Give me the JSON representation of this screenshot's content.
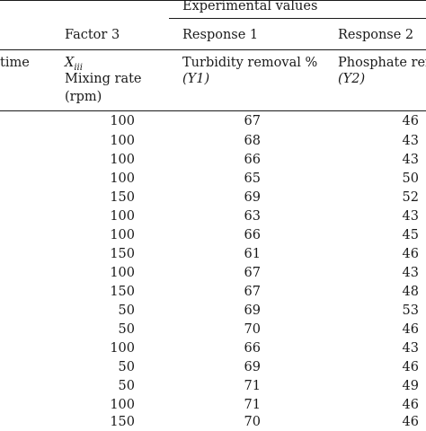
{
  "header": {
    "group_label": "Experimental values",
    "col0_fragment": "time",
    "factor3": {
      "label": "Factor 3",
      "symbol": "X",
      "symbol_sub": "iii",
      "name_line1": "Mixing rate",
      "name_line2": "(rpm)"
    },
    "response1": {
      "label": "Response 1",
      "name": "Turbidity removal %",
      "symbol": "(Y1)"
    },
    "response2": {
      "label": "Response 2",
      "name": "Phosphate rem",
      "symbol": "(Y2)"
    }
  },
  "rows": [
    {
      "f3": "100",
      "y1": "67",
      "y2": "46"
    },
    {
      "f3": "100",
      "y1": "68",
      "y2": "43"
    },
    {
      "f3": "100",
      "y1": "66",
      "y2": "43"
    },
    {
      "f3": "100",
      "y1": "65",
      "y2": "50"
    },
    {
      "f3": "150",
      "y1": "69",
      "y2": "52"
    },
    {
      "f3": "100",
      "y1": "63",
      "y2": "43"
    },
    {
      "f3": "100",
      "y1": "66",
      "y2": "45"
    },
    {
      "f3": "150",
      "y1": "61",
      "y2": "46"
    },
    {
      "f3": "100",
      "y1": "67",
      "y2": "43"
    },
    {
      "f3": "150",
      "y1": "67",
      "y2": "48"
    },
    {
      "f3": "50",
      "y1": "69",
      "y2": "53"
    },
    {
      "f3": "50",
      "y1": "70",
      "y2": "46"
    },
    {
      "f3": "100",
      "y1": "66",
      "y2": "43"
    },
    {
      "f3": "50",
      "y1": "69",
      "y2": "46"
    },
    {
      "f3": "50",
      "y1": "71",
      "y2": "49"
    },
    {
      "f3": "100",
      "y1": "71",
      "y2": "46"
    },
    {
      "f3": "150",
      "y1": "70",
      "y2": "46"
    }
  ]
}
